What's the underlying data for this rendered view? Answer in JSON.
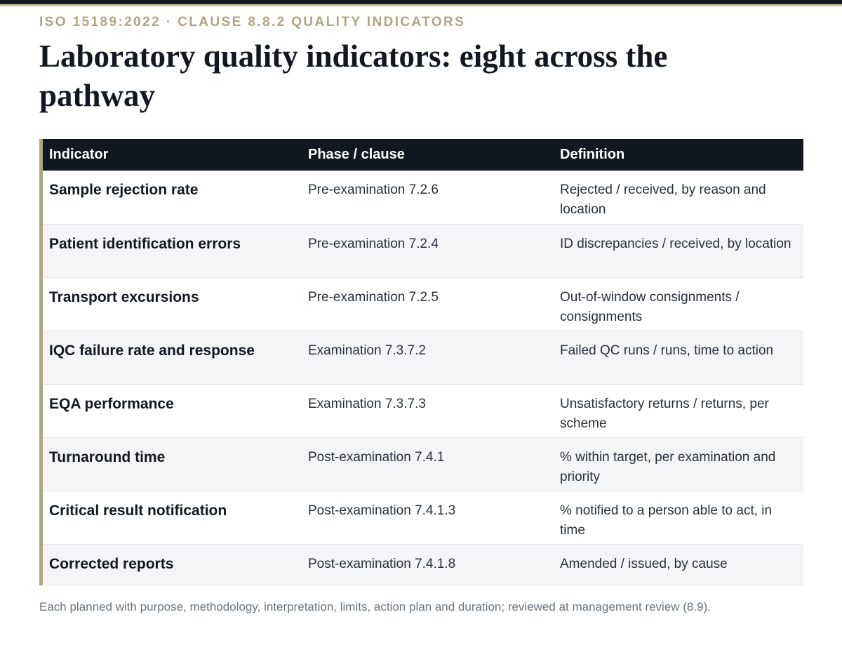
{
  "header": {
    "eyebrow": "ISO 15189:2022 · CLAUSE 8.8.2 QUALITY INDICATORS",
    "title": "Laboratory quality indicators: eight across the pathway"
  },
  "table": {
    "columns": [
      "Indicator",
      "Phase / clause",
      "Definition"
    ],
    "rows": [
      {
        "indicator": "Sample rejection rate",
        "phase": "Pre-examination 7.2.6",
        "definition": "Rejected / received, by reason and location"
      },
      {
        "indicator": "Patient identification errors",
        "phase": "Pre-examination 7.2.4",
        "definition": "ID discrepancies / received, by location"
      },
      {
        "indicator": "Transport excursions",
        "phase": "Pre-examination 7.2.5",
        "definition": "Out-of-window consignments / consignments"
      },
      {
        "indicator": "IQC failure rate and response",
        "phase": "Examination 7.3.7.2",
        "definition": "Failed QC runs / runs, time to action"
      },
      {
        "indicator": "EQA performance",
        "phase": "Examination 7.3.7.3",
        "definition": "Unsatisfactory returns / returns, per scheme"
      },
      {
        "indicator": "Turnaround time",
        "phase": "Post-examination 7.4.1",
        "definition": "% within target, per examination and priority"
      },
      {
        "indicator": "Critical result notification",
        "phase": "Post-examination 7.4.1.3",
        "definition": "% notified to a person able to act, in time"
      },
      {
        "indicator": "Corrected reports",
        "phase": "Post-examination 7.4.1.8",
        "definition": "Amended / issued, by cause"
      }
    ]
  },
  "footnote": "Each planned with purpose, methodology, interpretation, limits, action plan and duration; reviewed at management review (8.9).",
  "colors": {
    "ink": "#121821",
    "accent": "#b2a47e",
    "row_alt": "#f3f5f7",
    "muted": "#6b737c"
  }
}
